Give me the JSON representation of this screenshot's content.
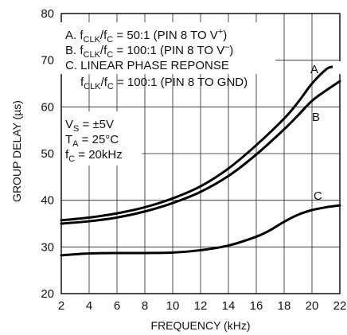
{
  "chart_data": {
    "type": "line",
    "xlabel": "FREQUENCY (kHz)",
    "ylabel": "GROUP DELAY (µs)",
    "xlim": [
      2,
      22
    ],
    "ylim": [
      20,
      80
    ],
    "xticks": [
      "2",
      "4",
      "6",
      "8",
      "10",
      "12",
      "14",
      "16",
      "18",
      "20",
      "22"
    ],
    "yticks": [
      "20",
      "30",
      "40",
      "50",
      "60",
      "70",
      "80"
    ],
    "grid": true,
    "series": [
      {
        "name": "A",
        "x": [
          2,
          4,
          6,
          8,
          10,
          12,
          14,
          16,
          18,
          19,
          20,
          21,
          21.5,
          22
        ],
        "y": [
          35.7,
          36.3,
          37.2,
          38.5,
          40.4,
          43.0,
          46.8,
          51.8,
          57.5,
          61.0,
          65.0,
          68.0,
          68.6,
          68.6
        ]
      },
      {
        "name": "B",
        "x": [
          2,
          4,
          6,
          8,
          10,
          12,
          14,
          16,
          18,
          19,
          20,
          21,
          22
        ],
        "y": [
          35.0,
          35.5,
          36.3,
          37.6,
          39.4,
          41.8,
          45.2,
          49.8,
          55.2,
          58.2,
          61.3,
          63.5,
          65.5
        ]
      },
      {
        "name": "C",
        "x": [
          2,
          4,
          6,
          8,
          10,
          12,
          14,
          16,
          17,
          18,
          19,
          20,
          21,
          22
        ],
        "y": [
          28.2,
          28.6,
          28.7,
          28.7,
          28.8,
          29.3,
          30.3,
          32.2,
          33.6,
          35.4,
          36.9,
          37.9,
          38.5,
          38.9
        ]
      }
    ],
    "annotations": {
      "legend_line_a_prefix": "A. f",
      "legend_line_a_sub1": "CLK",
      "legend_line_a_mid": "/f",
      "legend_line_a_sub2": "C",
      "legend_line_a_suffix": " = 50:1 (PIN 8 TO V",
      "legend_line_a_sup": "+",
      "legend_line_a_end": ")",
      "legend_line_b_prefix": "B. f",
      "legend_line_b_sub1": "CLK",
      "legend_line_b_mid": "/f",
      "legend_line_b_sub2": "C",
      "legend_line_b_suffix": " = 100:1 (PIN 8 TO V",
      "legend_line_b_sup": "–",
      "legend_line_b_end": ")",
      "legend_line_c1": "C. LINEAR PHASE REPONSE",
      "legend_line_c2_prefix": "f",
      "legend_line_c2_sub1": "CLK",
      "legend_line_c2_mid": "/f",
      "legend_line_c2_sub2": "C",
      "legend_line_c2_suffix": " = 100:1 (PIN 8 TO GND)",
      "cond_vs_prefix": "V",
      "cond_vs_sub": "S",
      "cond_vs_suffix": " = ±5V",
      "cond_ta_prefix": "T",
      "cond_ta_sub": "A",
      "cond_ta_suffix": " = 25°C",
      "cond_fc_prefix": "f",
      "cond_fc_sub": "C",
      "cond_fc_suffix": " = 20kHz",
      "curve_label_a": "A",
      "curve_label_b": "B",
      "curve_label_c": "C"
    }
  }
}
